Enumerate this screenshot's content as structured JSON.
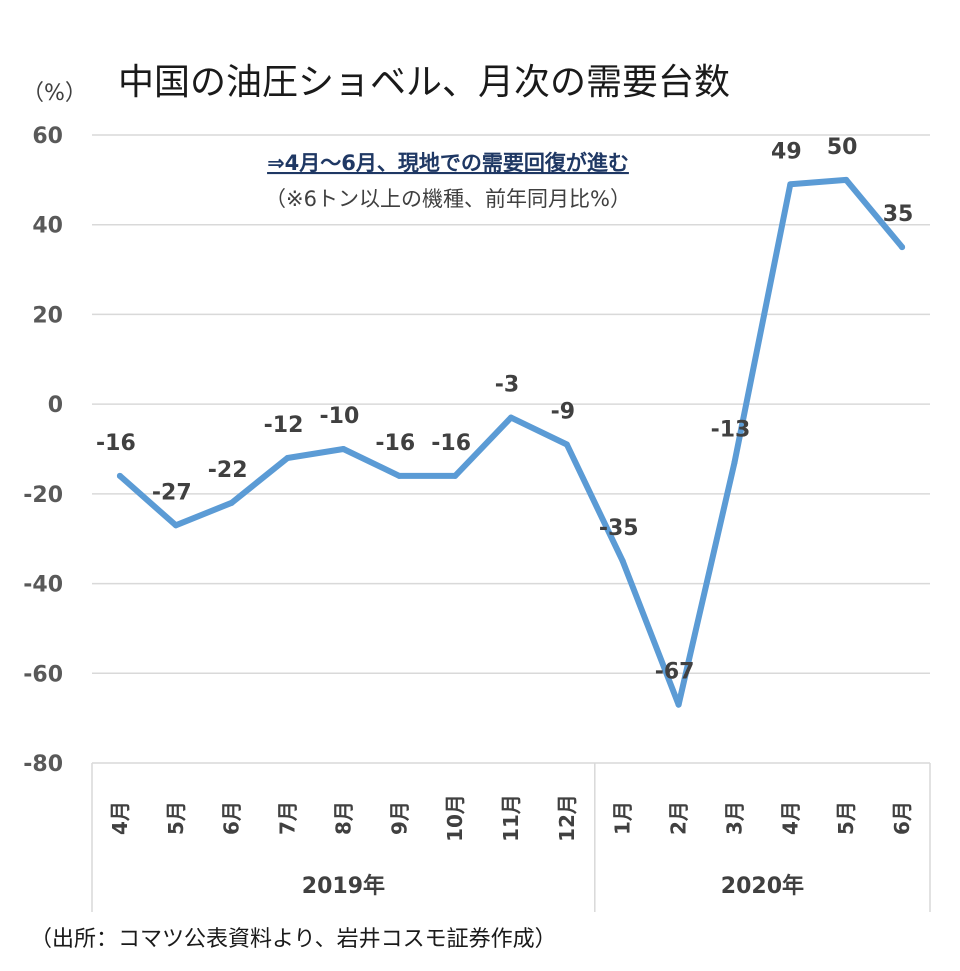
{
  "title": "中国の油圧ショベル、月次の需要台数",
  "unit_label": "（%）",
  "annotation": {
    "line1": "⇒4月～6月、現地での需要回復が進む",
    "line2": "（※6トン以上の機種、前年同月比%）"
  },
  "source": "（出所：コマツ公表資料より、岩井コスモ証券作成）",
  "colors": {
    "line": "#5b9bd5",
    "grid": "#d9d9d9",
    "annotation": "#1f3864"
  },
  "chart_data": {
    "type": "line",
    "title": "中国の油圧ショベル、月次の需要台数",
    "ylabel": "（%）",
    "xlabel": "",
    "ylim": [
      -80,
      60
    ],
    "yticks": [
      60,
      40,
      20,
      0,
      -20,
      -40,
      -60,
      -80
    ],
    "ytick_labels": [
      "60",
      "40",
      "20",
      "0",
      "-20",
      "-40",
      "-60",
      "-80"
    ],
    "grid": true,
    "categories": [
      "4月",
      "5月",
      "6月",
      "7月",
      "8月",
      "9月",
      "10月",
      "11月",
      "12月",
      "1月",
      "2月",
      "3月",
      "4月",
      "5月",
      "6月"
    ],
    "groups": [
      {
        "label": "2019年",
        "count": 9
      },
      {
        "label": "2020年",
        "count": 6
      }
    ],
    "series": [
      {
        "name": "前年同月比",
        "values": [
          -16,
          -27,
          -22,
          -12,
          -10,
          -16,
          -16,
          -3,
          -9,
          -35,
          -67,
          -13,
          49,
          50,
          35
        ],
        "labels": [
          "-16",
          "-27",
          "-22",
          "-12",
          "-10",
          "-16",
          "-16",
          "-3",
          "-9",
          "-35",
          "-67",
          "-13",
          "49",
          "50",
          "35"
        ]
      }
    ]
  }
}
